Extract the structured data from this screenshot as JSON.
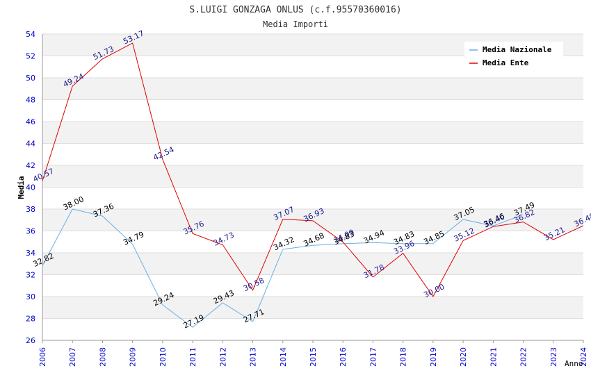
{
  "chart_data": {
    "type": "line",
    "title": "S.LUIGI GONZAGA ONLUS (c.f.95570360016)",
    "subtitle": "Media Importi",
    "xlabel": "Anno",
    "ylabel": "Media",
    "ylim": [
      26,
      54
    ],
    "yticks": [
      "26",
      "28",
      "30",
      "32",
      "34",
      "36",
      "38",
      "40",
      "42",
      "44",
      "46",
      "48",
      "50",
      "52",
      "54"
    ],
    "x": [
      "2006",
      "2007",
      "2008",
      "2009",
      "2010",
      "2011",
      "2012",
      "2013",
      "2014",
      "2015",
      "2016",
      "2017",
      "2018",
      "2019",
      "2020",
      "2021",
      "2022",
      "2023",
      "2024"
    ],
    "grid": true,
    "legend_position": "top-right",
    "series": [
      {
        "name": "Media Nazionale",
        "color": "#6aaee6",
        "label_color": "#000000",
        "values": [
          32.82,
          38.0,
          37.36,
          34.79,
          29.24,
          27.19,
          29.43,
          27.71,
          34.32,
          34.68,
          34.83,
          34.94,
          34.83,
          34.85,
          37.05,
          36.46,
          37.49,
          null,
          null
        ],
        "labels": [
          "32.82",
          "38.00",
          "37.36",
          "34.79",
          "29.24",
          "27.19",
          "29.43",
          "27.71",
          "34.32",
          "34.68",
          "34.83",
          "34.94",
          "34.83",
          "34.85",
          "37.05",
          "36.46",
          "37.49",
          "",
          ""
        ]
      },
      {
        "name": "Media Ente",
        "color": "#e00000",
        "label_color": "#1a1a8c",
        "values": [
          40.57,
          49.24,
          51.73,
          53.17,
          42.54,
          35.76,
          34.73,
          30.58,
          37.07,
          36.93,
          34.99,
          31.78,
          33.96,
          30.0,
          35.12,
          36.4,
          36.82,
          35.21,
          36.48
        ],
        "labels": [
          "40.57",
          "49.24",
          "51.73",
          "53.17",
          "42.54",
          "35.76",
          "34.73",
          "30.58",
          "37.07",
          "36.93",
          "34.99",
          "31.78",
          "33.96",
          "30.00",
          "35.12",
          "36.40",
          "36.82",
          "35.21",
          "36.48"
        ]
      }
    ]
  },
  "colors": {
    "band": "#f2f2f2",
    "grid": "#dddddd",
    "axis": "#999999",
    "tick_label": "#0000cc",
    "title": "#333333"
  }
}
